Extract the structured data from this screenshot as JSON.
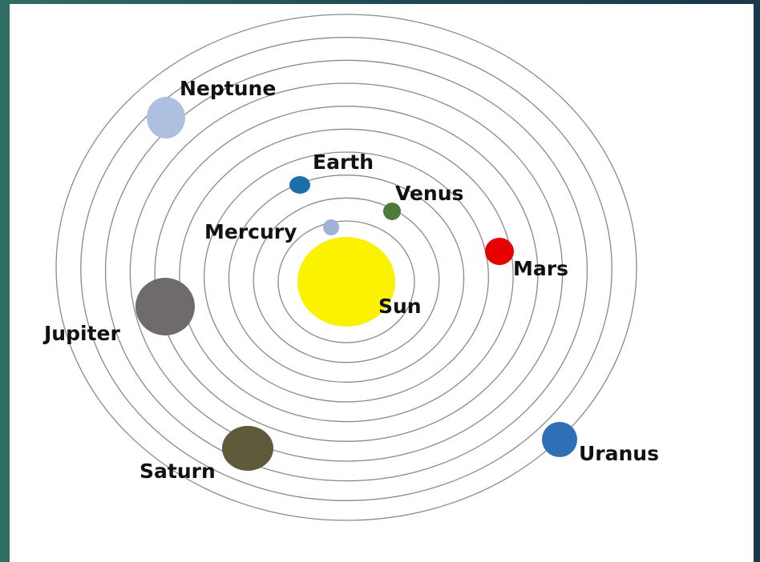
{
  "nodes": [
    {
      "label": "Sun"
    },
    {
      "label": "Mercury"
    },
    {
      "label": "Venus"
    },
    {
      "label": "Earth"
    },
    {
      "label": "Mars"
    },
    {
      "label": "Jupiter"
    },
    {
      "label": "Saturn"
    },
    {
      "label": "Uranus"
    },
    {
      "label": "Neptune"
    }
  ]
}
